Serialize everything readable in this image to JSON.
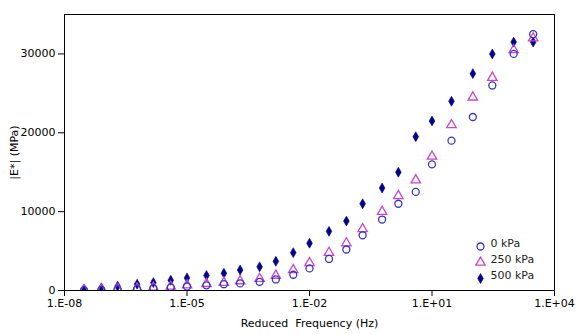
{
  "chart_data": {
    "type": "scatter",
    "xlabel": "Reduced  Frequency (Hz)",
    "ylabel": "|E*| (MPa)",
    "log": "x",
    "grid": false,
    "legend": "lower right",
    "x": [
      3e-08,
      8e-08,
      2e-07,
      6e-07,
      1.5e-06,
      4e-06,
      1e-05,
      3e-05,
      8e-05,
      0.0002,
      0.0006,
      0.0015,
      0.004,
      0.01,
      0.03,
      0.08,
      0.2,
      0.6,
      1.5,
      4.0,
      10.0,
      30.0,
      100.0,
      300.0,
      1000.0,
      3000.0
    ],
    "series": [
      {
        "name": "0 kPa",
        "color": "#3333cc",
        "marker": "circle-open",
        "values": [
          50,
          80,
          150,
          200,
          300,
          400,
          500,
          650,
          800,
          900,
          1100,
          1400,
          2000,
          2800,
          4000,
          5200,
          7000,
          9000,
          11000,
          12500,
          16000,
          19000,
          22000,
          26000,
          30000,
          32500
        ]
      },
      {
        "name": "250 kPa",
        "color": "#cc44cc",
        "marker": "triangle-open",
        "values": [
          80,
          130,
          200,
          280,
          380,
          520,
          680,
          850,
          1000,
          1200,
          1500,
          1900,
          2600,
          3500,
          4800,
          6000,
          7800,
          10000,
          12000,
          14000,
          17000,
          21000,
          24500,
          27000,
          30500,
          32000
        ]
      },
      {
        "name": "500 kPa",
        "color": "#00008b",
        "marker": "diamond",
        "values": [
          200,
          350,
          550,
          800,
          1000,
          1300,
          1600,
          1900,
          2200,
          2600,
          3000,
          3700,
          4800,
          6000,
          7500,
          8800,
          11000,
          13000,
          15000,
          19500,
          21500,
          24000,
          27500,
          30000,
          31500,
          31500
        ]
      }
    ],
    "xlim": [
      1e-08,
      10000.0
    ],
    "xticks": [
      {
        "value": 1e-08,
        "label": "1.E-08"
      },
      {
        "value": 1e-05,
        "label": "1.E-05"
      },
      {
        "value": 0.01,
        "label": "1.E-02"
      },
      {
        "value": 10.0,
        "label": "1.E+01"
      },
      {
        "value": 10000.0,
        "label": "1.E+04"
      }
    ],
    "ylim": [
      0,
      35000
    ],
    "yticks": [
      0,
      10000,
      20000,
      30000
    ]
  }
}
